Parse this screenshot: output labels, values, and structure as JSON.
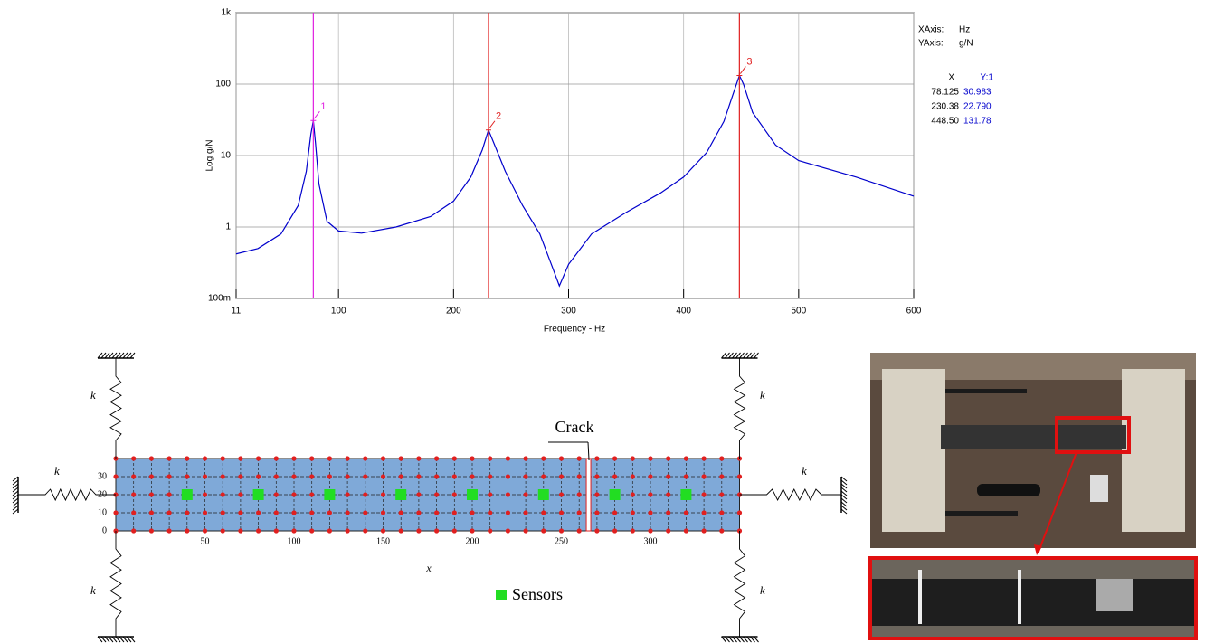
{
  "chart_data": {
    "type": "line",
    "x_label": "Frequency - Hz",
    "y_label": "Log g/N",
    "xlim": [
      11,
      600
    ],
    "xticks": [
      11,
      100,
      200,
      300,
      400,
      500,
      600
    ],
    "ylim": [
      0.1,
      1000
    ],
    "log_y": true,
    "yticks": [
      {
        "value": 0.1,
        "label": "100m"
      },
      1,
      10,
      100,
      {
        "value": 1000,
        "label": "1k"
      }
    ],
    "grid": true,
    "series": [
      {
        "name": "Y:1",
        "color": "#0000cc",
        "x": [
          11,
          30,
          50,
          65,
          72,
          76,
          78.125,
          80,
          83,
          90,
          100,
          120,
          150,
          180,
          200,
          215,
          225,
          230.38,
          235,
          245,
          260,
          275,
          285,
          292,
          300,
          320,
          350,
          380,
          400,
          420,
          435,
          445,
          448.5,
          452,
          460,
          480,
          500,
          550,
          600
        ],
        "values": [
          0.42,
          0.5,
          0.8,
          2,
          6,
          20,
          30.983,
          15,
          4,
          1.2,
          0.88,
          0.82,
          1.0,
          1.4,
          2.3,
          5,
          12,
          22.79,
          15,
          6,
          2,
          0.8,
          0.3,
          0.15,
          0.3,
          0.8,
          1.6,
          3,
          5,
          11,
          30,
          90,
          131.78,
          100,
          40,
          14,
          8.5,
          5,
          2.7
        ]
      }
    ],
    "axis_info": {
      "x_key": "XAxis:",
      "x_unit": "Hz",
      "y_key": "YAxis:",
      "y_unit": "g/N"
    },
    "cursors": {
      "x_header": "X",
      "y_header": "Y:1",
      "markers": [
        "1",
        "2",
        "3"
      ],
      "colors": [
        "#e020e0",
        "#e02020",
        "#e02020"
      ],
      "x": [
        78.125,
        230.38,
        448.5
      ],
      "x_labels": [
        "78.125",
        "230.38",
        "448.50"
      ],
      "values": [
        30.983,
        22.79,
        131.78
      ],
      "value_labels": [
        "30.983",
        "22.790",
        "131.78"
      ]
    }
  },
  "diagram": {
    "xticks": [
      50,
      100,
      150,
      200,
      250,
      300
    ],
    "yticks": [
      0,
      10,
      20,
      30
    ],
    "x_label": "x",
    "crack_label": "Crack",
    "legend": "Sensors",
    "springs": [
      "k",
      "k",
      "k",
      "k",
      "k",
      "k"
    ]
  }
}
